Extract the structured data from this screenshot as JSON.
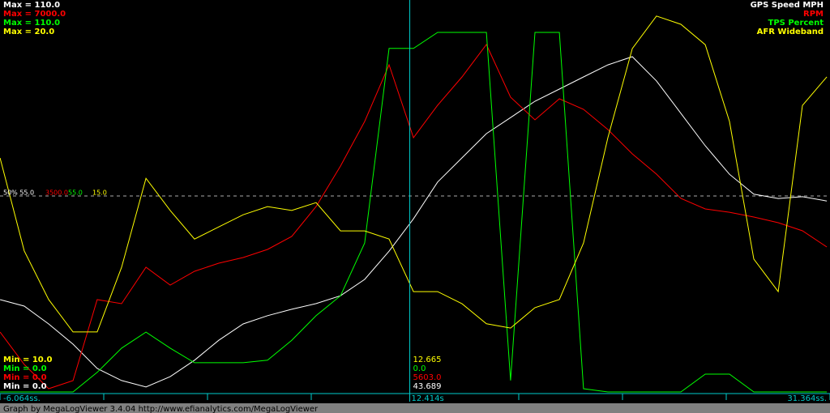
{
  "chart_data": {
    "type": "line",
    "x": [
      -6.06,
      -4.97,
      -3.87,
      -2.77,
      -1.68,
      -0.58,
      0.52,
      1.61,
      2.71,
      3.8,
      4.9,
      6.0,
      7.09,
      8.19,
      9.29,
      10.38,
      11.48,
      12.58,
      13.67,
      14.77,
      15.87,
      16.96,
      18.06,
      19.16,
      20.25,
      21.35,
      22.45,
      23.54,
      24.64,
      25.74,
      26.83,
      27.93,
      29.03,
      30.12,
      31.22
    ],
    "xlim": [
      -6.064,
      31.364
    ],
    "xticks": [
      {
        "value": -6.064,
        "label": "-6.064ss."
      },
      {
        "value": 31.364,
        "label": "31.364ss."
      }
    ],
    "cursor": {
      "value": 12.414,
      "label": "12.414s"
    },
    "series": [
      {
        "name": "GPS Speed MPH",
        "color": "#ffffff",
        "ylim": [
          0,
          110
        ],
        "max_label": "Max = 110.0",
        "min_label": "Min = 0.0",
        "mid_label": "50% 55.0",
        "cursor_label": "43.689",
        "values": [
          25.9,
          24.1,
          19.1,
          13.4,
          6.6,
          3.2,
          1.4,
          4.3,
          8.9,
          14.5,
          19.1,
          21.4,
          23.2,
          24.8,
          27.0,
          31.6,
          39.5,
          48.6,
          58.9,
          65.7,
          72.5,
          77.0,
          81.6,
          85.0,
          88.4,
          91.8,
          94.1,
          87.3,
          78.2,
          69.1,
          61.1,
          55.5,
          54.3,
          54.8,
          53.6
        ]
      },
      {
        "name": "RPM",
        "color": "#ff0000",
        "ylim": [
          0,
          7000
        ],
        "max_label": "Max = 7000.0",
        "min_label": "Min = 0.0",
        "mid_label": "3500.0",
        "cursor_label": "5603.0",
        "values": [
          1070,
          492,
          58,
          202,
          1649,
          1576,
          2227,
          1909,
          2155,
          2300,
          2401,
          2546,
          2777,
          3312,
          4035,
          4831,
          5843,
          4541,
          5120,
          5626,
          6205,
          5265,
          4860,
          5236,
          5048,
          4686,
          4252,
          3891,
          3457,
          3268,
          3210,
          3124,
          3023,
          2878,
          2589
        ]
      },
      {
        "name": "TPS Percent",
        "color": "#00ff00",
        "ylim": [
          0,
          110
        ],
        "max_label": "Max = 110.0",
        "min_label": "Min = 0.0",
        "mid_label": "55.0",
        "cursor_label": "0.0",
        "values": [
          0,
          0,
          0,
          0,
          5.5,
          12.3,
          16.8,
          12.3,
          8.2,
          8.2,
          8.2,
          8.9,
          14.5,
          21.4,
          27.0,
          41.8,
          96.4,
          96.4,
          100.9,
          100.9,
          100.9,
          3.2,
          100.9,
          100.9,
          0.9,
          0,
          0,
          0,
          0,
          5.0,
          5.0,
          0,
          0,
          0,
          0
        ]
      },
      {
        "name": "AFR Wideband",
        "color": "#ffff00",
        "ylim": [
          10,
          20
        ],
        "max_label": "Max = 20.0",
        "min_label": "Min = 10.0",
        "mid_label": "15.0",
        "cursor_label": "12.665",
        "values": [
          15.97,
          13.6,
          12.36,
          11.53,
          11.53,
          13.18,
          15.45,
          14.63,
          13.9,
          14.21,
          14.52,
          14.73,
          14.63,
          14.83,
          14.11,
          14.11,
          13.9,
          12.56,
          12.56,
          12.25,
          11.74,
          11.63,
          12.15,
          12.36,
          13.8,
          16.49,
          18.76,
          19.59,
          19.38,
          18.86,
          16.9,
          13.39,
          12.56,
          17.31,
          18.04
        ]
      }
    ],
    "footer": "Graph by MegaLogViewer 3.4.04 http://www.efianalytics.com/MegaLogViewer"
  }
}
